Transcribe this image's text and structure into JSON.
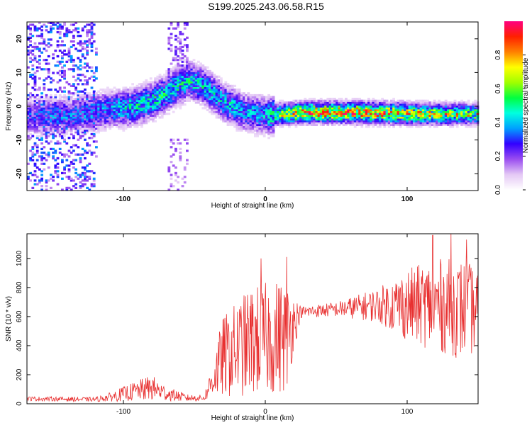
{
  "title": "S199.2025.243.06.58.R15",
  "chart_data": [
    {
      "type": "heatmap",
      "xlabel": "Height of straight line (km)",
      "ylabel": "Frequency (Hz)",
      "xlim": [
        -168,
        150
      ],
      "ylim": [
        -25,
        25
      ],
      "xticks": [
        -100,
        0,
        100
      ],
      "yticks": [
        -20,
        -10,
        0,
        10,
        20
      ],
      "colorbar": {
        "label": "Normalized spectral amplitude",
        "range": [
          0,
          1
        ],
        "ticks": [
          0.0,
          0.2,
          0.4,
          0.6,
          0.8
        ],
        "ticklabels": [
          "0.0",
          "0.2",
          "0.4",
          "0.6",
          "0.8"
        ],
        "colors": [
          "#ffffff",
          "#e4c8f5",
          "#9a4df0",
          "#3200ff",
          "#00a0ff",
          "#00ffe0",
          "#00ff40",
          "#a0ff00",
          "#ffff00",
          "#ff8000",
          "#ff2000",
          "#ff0080"
        ]
      },
      "ridge": [
        {
          "x": -168,
          "f": -3.5,
          "a": 0.25
        },
        {
          "x": -150,
          "f": -3,
          "a": 0.3
        },
        {
          "x": -130,
          "f": -2.5,
          "a": 0.3
        },
        {
          "x": -110,
          "f": -1,
          "a": 0.35
        },
        {
          "x": -95,
          "f": -0.5,
          "a": 0.4
        },
        {
          "x": -80,
          "f": 1.5,
          "a": 0.42
        },
        {
          "x": -65,
          "f": 5,
          "a": 0.42
        },
        {
          "x": -55,
          "f": 7.5,
          "a": 0.4
        },
        {
          "x": -45,
          "f": 6,
          "a": 0.4
        },
        {
          "x": -30,
          "f": 1,
          "a": 0.38
        },
        {
          "x": -15,
          "f": -2,
          "a": 0.35
        },
        {
          "x": 0,
          "f": -3,
          "a": 0.35
        },
        {
          "x": 10,
          "f": -2.5,
          "a": 0.6
        },
        {
          "x": 30,
          "f": -2,
          "a": 0.72
        },
        {
          "x": 60,
          "f": -2,
          "a": 0.75
        },
        {
          "x": 90,
          "f": -2.3,
          "a": 0.7
        },
        {
          "x": 120,
          "f": -2.5,
          "a": 0.6
        },
        {
          "x": 150,
          "f": -2.5,
          "a": 0.5
        }
      ]
    },
    {
      "type": "line",
      "xlabel": "Height of straight line (km)",
      "ylabel": "SNR (10 * v/v)",
      "xlim": [
        -168,
        150
      ],
      "ylim": [
        0,
        1170
      ],
      "xticks": [
        -100,
        0,
        100
      ],
      "yticks": [
        0,
        200,
        400,
        600,
        800,
        1000
      ],
      "color": "#e83030",
      "envelope": [
        {
          "x": -168,
          "base": 35,
          "amp": 15
        },
        {
          "x": -120,
          "base": 30,
          "amp": 15
        },
        {
          "x": -110,
          "base": 45,
          "amp": 30
        },
        {
          "x": -90,
          "base": 90,
          "amp": 70
        },
        {
          "x": -80,
          "base": 110,
          "amp": 90
        },
        {
          "x": -70,
          "base": 70,
          "amp": 50
        },
        {
          "x": -55,
          "base": 40,
          "amp": 25
        },
        {
          "x": -43,
          "base": 40,
          "amp": 20
        },
        {
          "x": -38,
          "base": 150,
          "amp": 110
        },
        {
          "x": -30,
          "base": 320,
          "amp": 280
        },
        {
          "x": -10,
          "base": 430,
          "amp": 380
        },
        {
          "x": 15,
          "base": 470,
          "amp": 400
        },
        {
          "x": 20,
          "base": 560,
          "amp": 200
        },
        {
          "x": 25,
          "base": 630,
          "amp": 40
        },
        {
          "x": 50,
          "base": 650,
          "amp": 50
        },
        {
          "x": 80,
          "base": 680,
          "amp": 120
        },
        {
          "x": 100,
          "base": 680,
          "amp": 250
        },
        {
          "x": 120,
          "base": 680,
          "amp": 320
        },
        {
          "x": 140,
          "base": 650,
          "amp": 350
        },
        {
          "x": 150,
          "base": 640,
          "amp": 280
        }
      ],
      "peaks": [
        {
          "x": -3,
          "y": 1000
        },
        {
          "x": 15,
          "y": 1010
        },
        {
          "x": 118,
          "y": 1160
        },
        {
          "x": 131,
          "y": 1170
        },
        {
          "x": 142,
          "y": 1130
        }
      ]
    }
  ]
}
